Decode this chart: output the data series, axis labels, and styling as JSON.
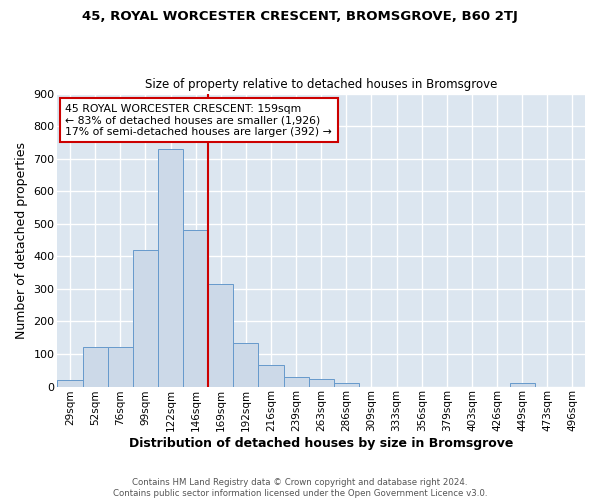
{
  "title1": "45, ROYAL WORCESTER CRESCENT, BROMSGROVE, B60 2TJ",
  "title2": "Size of property relative to detached houses in Bromsgrove",
  "xlabel": "Distribution of detached houses by size in Bromsgrove",
  "ylabel": "Number of detached properties",
  "categories": [
    "29sqm",
    "52sqm",
    "76sqm",
    "99sqm",
    "122sqm",
    "146sqm",
    "169sqm",
    "192sqm",
    "216sqm",
    "239sqm",
    "263sqm",
    "286sqm",
    "309sqm",
    "333sqm",
    "356sqm",
    "379sqm",
    "403sqm",
    "426sqm",
    "449sqm",
    "473sqm",
    "496sqm"
  ],
  "values": [
    20,
    120,
    120,
    420,
    730,
    480,
    315,
    135,
    65,
    28,
    22,
    10,
    0,
    0,
    0,
    0,
    0,
    0,
    10,
    0,
    0
  ],
  "bar_color": "#ccd9e8",
  "bar_edge_color": "#6699cc",
  "bg_color": "#ffffff",
  "plot_bg_color": "#dce6f0",
  "grid_color": "#ffffff",
  "vline_color": "#cc0000",
  "annotation_text": "45 ROYAL WORCESTER CRESCENT: 159sqm\n← 83% of detached houses are smaller (1,926)\n17% of semi-detached houses are larger (392) →",
  "annotation_box_color": "#ffffff",
  "annotation_box_edge": "#cc0000",
  "ylim": [
    0,
    900
  ],
  "yticks": [
    0,
    100,
    200,
    300,
    400,
    500,
    600,
    700,
    800,
    900
  ],
  "footer1": "Contains HM Land Registry data © Crown copyright and database right 2024.",
  "footer2": "Contains public sector information licensed under the Open Government Licence v3.0."
}
